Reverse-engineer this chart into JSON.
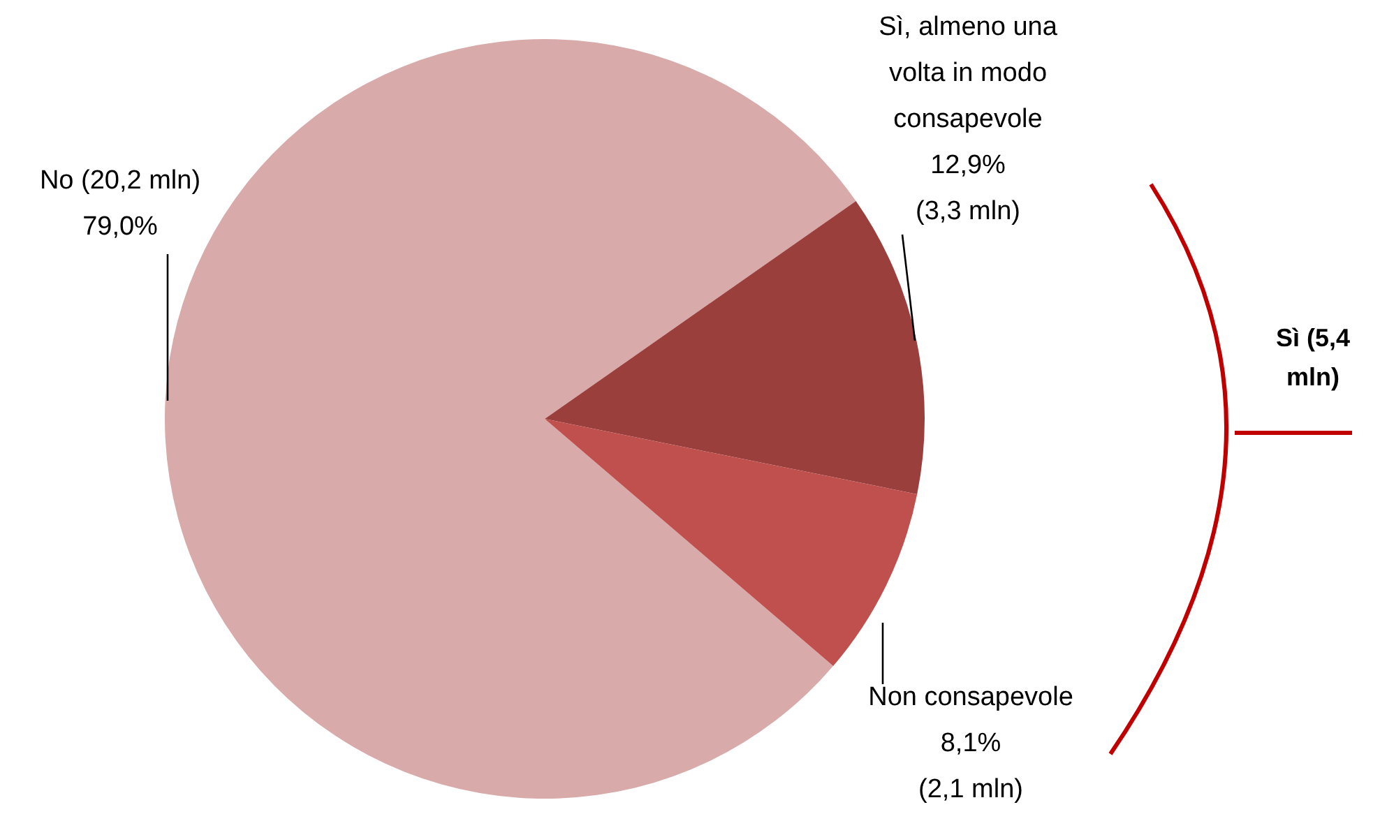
{
  "chart_data": {
    "type": "pie",
    "categories": [
      "No (20,2 mln)",
      "Sì, almeno una volta in modo consapevole",
      "Non consapevole"
    ],
    "values": [
      79.0,
      12.9,
      8.1
    ],
    "colors": [
      "#d9aaaa",
      "#9b3f3d",
      "#c0504d"
    ],
    "value_labels": [
      "79,0%",
      "12,9% (3,3 mln)",
      "8,1% (2,1 mln)"
    ],
    "annotations": [
      "Sì (5,4 mln)"
    ]
  }
}
